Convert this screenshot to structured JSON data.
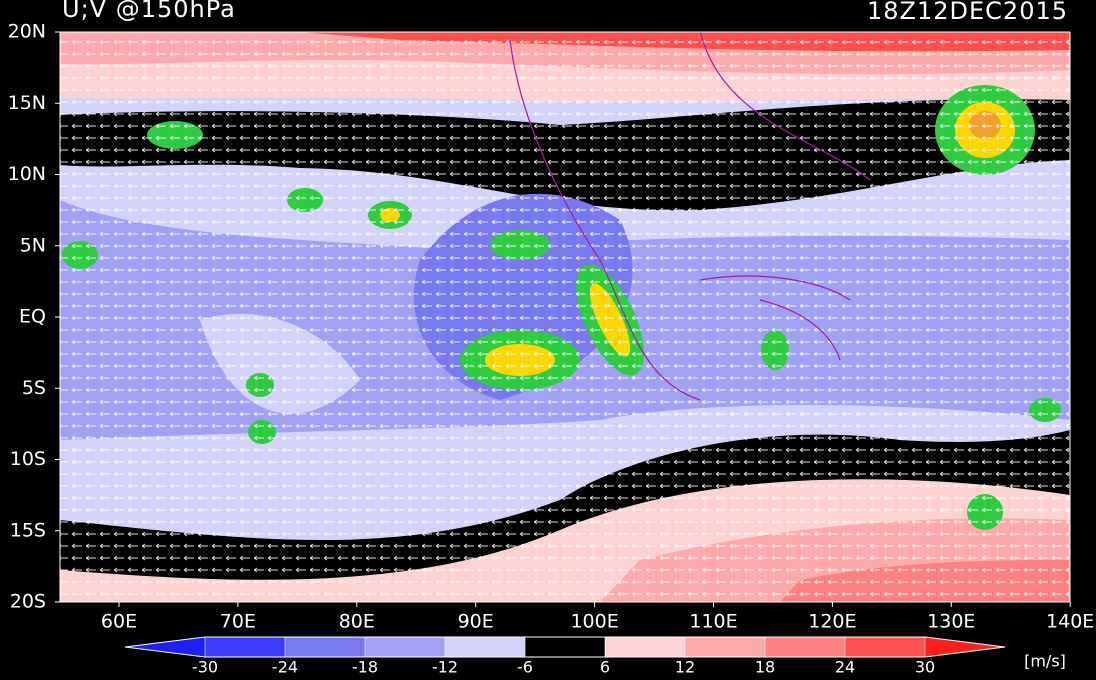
{
  "title": "U;V @150hPa",
  "time": "18Z12DEC2015",
  "lat_labels": [
    "20N",
    "15N",
    "10N",
    "5N",
    "EQ",
    "5S",
    "10S",
    "15S",
    "20S"
  ],
  "lon_labels": [
    "60E",
    "70E",
    "80E",
    "90E",
    "100E",
    "110E",
    "120E",
    "130E",
    "140E"
  ],
  "colorbar": {
    "ticks": [
      -30,
      -24,
      -18,
      -12,
      -6,
      6,
      12,
      18,
      24,
      30
    ],
    "colors": [
      "#1e1eff",
      "#3c3cff",
      "#7878f0",
      "#a0a0f5",
      "#d2d2fa",
      "#000000",
      "#ffd2d2",
      "#ffaaaa",
      "#ff8080",
      "#ff5050",
      "#ff1e1e"
    ],
    "units": "[m/s]"
  }
}
